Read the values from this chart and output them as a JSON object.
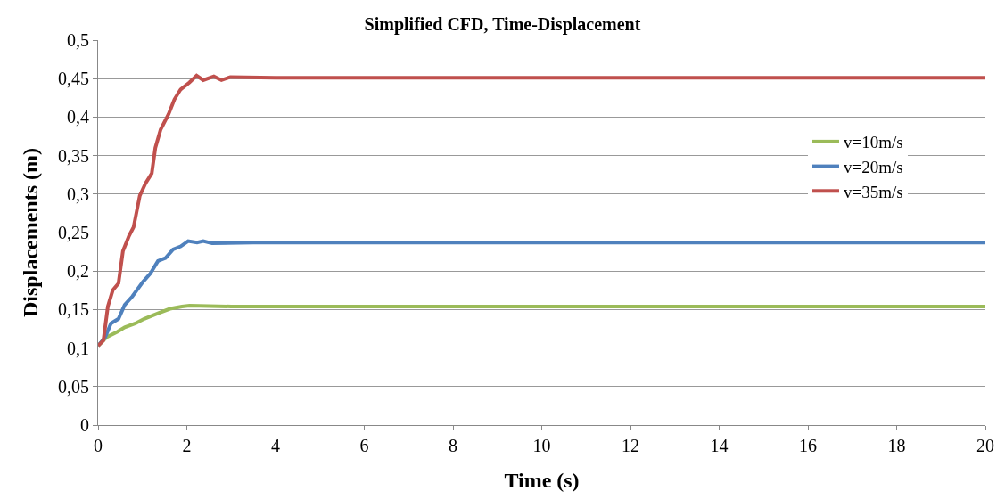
{
  "chart_data": {
    "type": "line",
    "title": "Simplified CFD, Time-Displacement",
    "xlabel": "Time (s)",
    "ylabel": "Displacements (m)",
    "xlim": [
      0,
      20
    ],
    "xticks": [
      0,
      2,
      4,
      6,
      8,
      10,
      12,
      14,
      16,
      18,
      20
    ],
    "ylim": [
      0,
      0.5
    ],
    "yticks": [
      0,
      {
        "value": 0.05,
        "label": "0,05"
      },
      {
        "value": 0.1,
        "label": "0,1"
      },
      {
        "value": 0.15,
        "label": "0,15"
      },
      {
        "value": 0.2,
        "label": "0,2"
      },
      {
        "value": 0.25,
        "label": "0,25"
      },
      {
        "value": 0.3,
        "label": "0,3"
      },
      {
        "value": 0.35,
        "label": "0,35"
      },
      {
        "value": 0.4,
        "label": "0,4"
      },
      {
        "value": 0.45,
        "label": "0,45"
      },
      {
        "value": 0.5,
        "label": "0,5"
      }
    ],
    "grid": "y",
    "legend": "right",
    "marker": "none",
    "line_style": "solid",
    "series": [
      {
        "name": "v=10m/s",
        "color": "#9bbb59",
        "x": [
          0,
          0.19,
          0.43,
          0.6,
          0.84,
          1.04,
          1.35,
          1.62,
          1.89,
          2.06,
          3,
          5,
          8,
          12,
          16,
          20
        ],
        "values": [
          0.103,
          0.114,
          0.121,
          0.127,
          0.132,
          0.138,
          0.145,
          0.151,
          0.154,
          0.155,
          0.154,
          0.154,
          0.154,
          0.154,
          0.154,
          0.154
        ]
      },
      {
        "name": "v=20m/s",
        "color": "#4f81bd",
        "x": [
          0,
          0.16,
          0.29,
          0.46,
          0.6,
          0.77,
          1.01,
          1.18,
          1.35,
          1.52,
          1.69,
          1.86,
          2.03,
          2.23,
          2.37,
          2.57,
          3.5,
          5,
          8,
          12,
          16,
          20
        ],
        "values": [
          0.103,
          0.114,
          0.132,
          0.138,
          0.156,
          0.167,
          0.186,
          0.197,
          0.213,
          0.217,
          0.228,
          0.232,
          0.239,
          0.237,
          0.239,
          0.236,
          0.237,
          0.237,
          0.237,
          0.237,
          0.237,
          0.237
        ]
      },
      {
        "name": "v=35m/s",
        "color": "#c0504d",
        "x": [
          0,
          0.12,
          0.22,
          0.33,
          0.46,
          0.56,
          0.7,
          0.8,
          0.94,
          1.07,
          1.21,
          1.29,
          1.41,
          1.59,
          1.72,
          1.86,
          2.06,
          2.22,
          2.37,
          2.61,
          2.78,
          2.98,
          4,
          6,
          8,
          12,
          16,
          20
        ],
        "values": [
          0.103,
          0.11,
          0.154,
          0.175,
          0.184,
          0.226,
          0.246,
          0.257,
          0.298,
          0.314,
          0.327,
          0.36,
          0.384,
          0.404,
          0.423,
          0.436,
          0.445,
          0.454,
          0.448,
          0.453,
          0.448,
          0.452,
          0.451,
          0.451,
          0.451,
          0.451,
          0.451,
          0.451
        ]
      }
    ]
  }
}
